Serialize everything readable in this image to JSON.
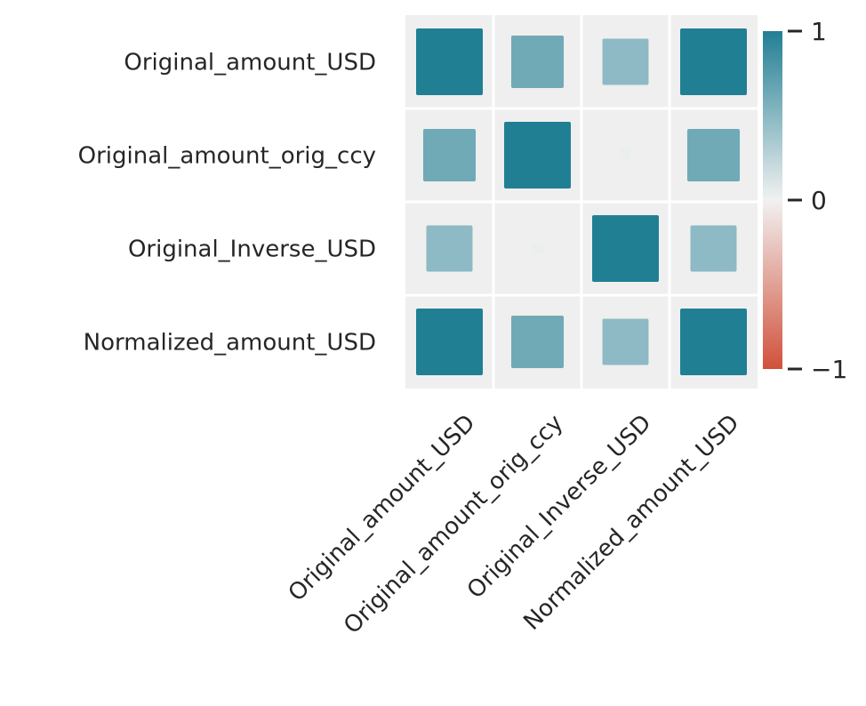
{
  "chart_data": {
    "type": "heatmap",
    "title": "",
    "xlabel": "",
    "ylabel": "",
    "row_labels": [
      "Original_amount_USD",
      "Original_amount_orig_ccy",
      "Original_Inverse_USD",
      "Normalized_amount_USD"
    ],
    "col_labels": [
      "Original_amount_USD",
      "Original_amount_orig_ccy",
      "Original_Inverse_USD",
      "Normalized_amount_USD"
    ],
    "values": [
      [
        1.0,
        0.62,
        0.48,
        1.0
      ],
      [
        0.62,
        1.0,
        0.03,
        0.62
      ],
      [
        0.48,
        0.03,
        1.0,
        0.48
      ],
      [
        1.0,
        0.62,
        0.48,
        1.0
      ]
    ],
    "value_range": [
      -1,
      1
    ],
    "encoding": "color and square size scale with correlation",
    "colorbar": {
      "ticks": [
        "1",
        "0",
        "−1"
      ],
      "tick_values": [
        1,
        0,
        -1
      ],
      "placement": "right"
    },
    "colors": {
      "positive": "#217f94",
      "neutral": "#f1f1f1",
      "negative": "#d1513b",
      "cell_background": "#efefef",
      "grid": "#ffffff",
      "text": "#262626"
    }
  }
}
